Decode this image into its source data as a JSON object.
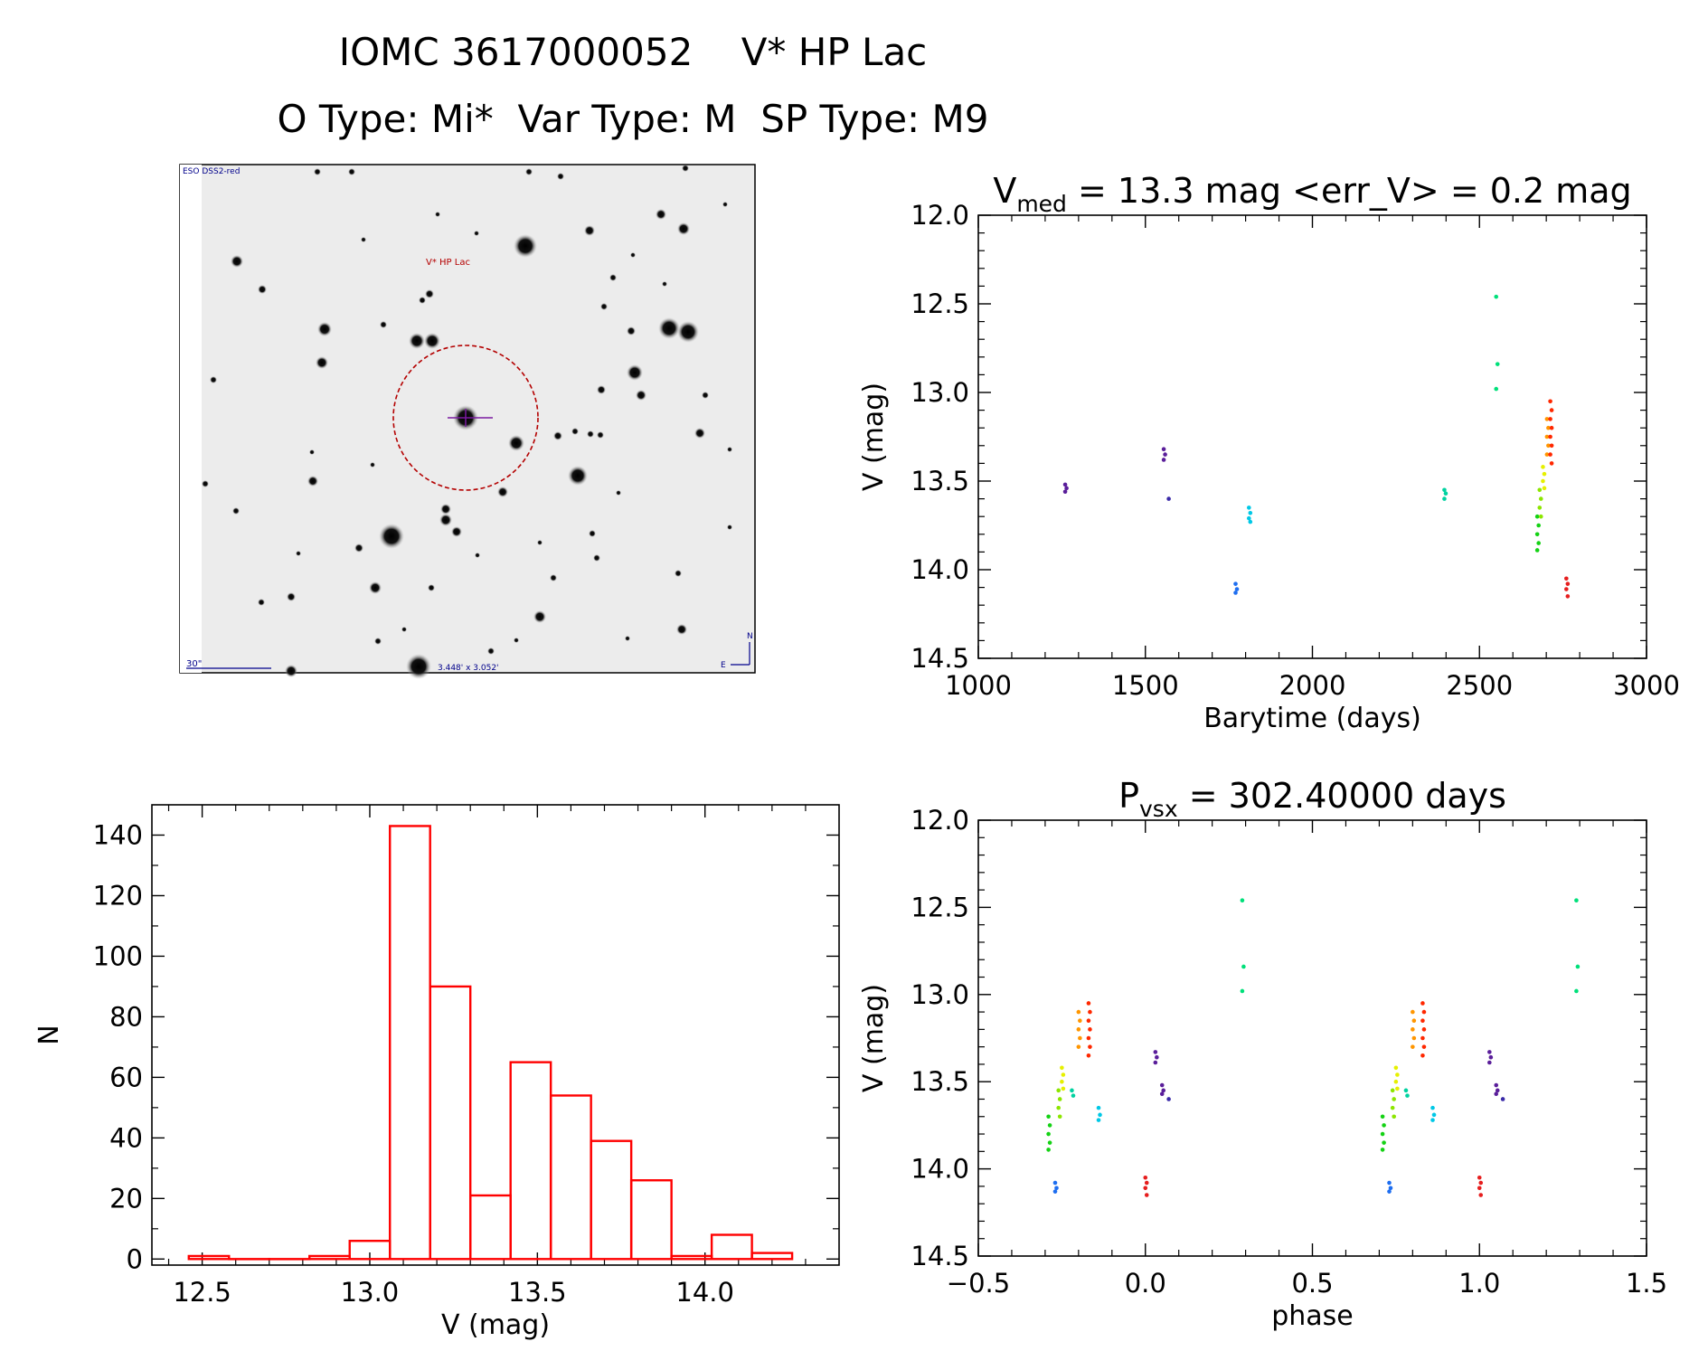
{
  "header": {
    "title": "IOMC 3617000052    V* HP Lac",
    "subtitle": "O Type: Mi*  Var Type: M  SP Type: M9"
  },
  "finder_image": {
    "survey": "ESO DSS2-red",
    "target_label": "V* HP Lac",
    "scale_label": "30\"",
    "fov_label": "3.448' x 3.052'",
    "compass_n": "N",
    "compass_e": "E"
  },
  "colors": {
    "histogram": "#ff0000",
    "circle": "#b40000",
    "annotation": "#00008b"
  },
  "chart_data": [
    {
      "id": "lightcurve",
      "type": "scatter",
      "title_main": "V",
      "title_sub": "med",
      "title_rest": " = 13.3 mag <err_V> = 0.2 mag",
      "xlabel": "Barytime (days)",
      "ylabel": "V (mag)",
      "xlim": [
        1000,
        3000
      ],
      "ylim": [
        14.5,
        12.0
      ],
      "y_inverted": true,
      "xticks": [
        "1000",
        "1500",
        "2000",
        "2500",
        "3000"
      ],
      "yticks": [
        "12.0",
        "12.5",
        "13.0",
        "13.5",
        "14.0",
        "14.5"
      ],
      "groups": [
        {
          "x": 1260,
          "y": [
            13.52,
            13.54,
            13.56
          ],
          "color": "#5a1e9a"
        },
        {
          "x": 1555,
          "y": [
            13.32,
            13.35,
            13.38
          ],
          "color": "#5a1e9a"
        },
        {
          "x": 1570,
          "y": [
            13.6
          ],
          "color": "#3a2aa8"
        },
        {
          "x": 1770,
          "y": [
            14.08,
            14.11,
            14.13
          ],
          "color": "#1e6ef0"
        },
        {
          "x": 1810,
          "y": [
            13.65,
            13.68,
            13.71,
            13.73
          ],
          "color": "#00c8e6"
        },
        {
          "x": 2395,
          "y": [
            13.55,
            13.57,
            13.6
          ],
          "color": "#00d2a0"
        },
        {
          "x": 2550,
          "y": [
            12.46,
            12.84,
            12.98
          ],
          "color": "#00e07a"
        },
        {
          "x": 2673,
          "y": [
            13.7,
            13.75,
            13.8,
            13.85,
            13.89
          ],
          "color": "#14d214"
        },
        {
          "x": 2680,
          "y": [
            13.55,
            13.6,
            13.65,
            13.7
          ],
          "color": "#8ce600"
        },
        {
          "x": 2690,
          "y": [
            13.42,
            13.46,
            13.5,
            13.54
          ],
          "color": "#e6f000"
        },
        {
          "x": 2702,
          "y": [
            13.15,
            13.2,
            13.25,
            13.3,
            13.35
          ],
          "color": "#ff9600"
        },
        {
          "x": 2712,
          "y": [
            13.05,
            13.1,
            13.15,
            13.2,
            13.25,
            13.3,
            13.35,
            13.4
          ],
          "color": "#ff2800"
        },
        {
          "x": 2760,
          "y": [
            14.05,
            14.08,
            14.11,
            14.15
          ],
          "color": "#e61e1e"
        }
      ]
    },
    {
      "id": "histogram",
      "type": "bar",
      "xlabel": "V (mag)",
      "ylabel": "N",
      "xlim": [
        12.35,
        14.4
      ],
      "ylim": [
        -2,
        150
      ],
      "xticks": [
        "12.5",
        "13.0",
        "13.5",
        "14.0"
      ],
      "yticks": [
        "0",
        "20",
        "40",
        "60",
        "80",
        "100",
        "120",
        "140"
      ],
      "bin_width": 0.12,
      "bins": [
        12.52,
        12.64,
        12.76,
        12.88,
        13.0,
        13.12,
        13.24,
        13.36,
        13.48,
        13.6,
        13.72,
        13.84,
        13.96,
        14.08,
        14.2
      ],
      "values": [
        1,
        0,
        0,
        1,
        6,
        143,
        90,
        21,
        65,
        54,
        39,
        26,
        1,
        8,
        2
      ]
    },
    {
      "id": "phased",
      "type": "scatter",
      "title_main": "P",
      "title_sub": "vsx",
      "title_rest": " = 302.40000 days",
      "xlabel": "phase",
      "ylabel": "V (mag)",
      "xlim": [
        -0.5,
        1.5
      ],
      "ylim": [
        14.5,
        12.0
      ],
      "y_inverted": true,
      "xticks": [
        "−0.5",
        "0.0",
        "0.5",
        "1.0",
        "1.5"
      ],
      "yticks": [
        "12.0",
        "12.5",
        "13.0",
        "13.5",
        "14.0",
        "14.5"
      ],
      "groups": [
        {
          "x": -0.29,
          "y": [
            13.7,
            13.75,
            13.8,
            13.85,
            13.89
          ],
          "color": "#14d214"
        },
        {
          "x": -0.27,
          "y": [
            14.08,
            14.11,
            14.13
          ],
          "color": "#1e6ef0"
        },
        {
          "x": -0.26,
          "y": [
            13.55,
            13.6,
            13.65,
            13.7
          ],
          "color": "#8ce600"
        },
        {
          "x": -0.25,
          "y": [
            13.42,
            13.46,
            13.5,
            13.54
          ],
          "color": "#e6f000"
        },
        {
          "x": -0.22,
          "y": [
            13.55,
            13.58
          ],
          "color": "#00d2a0"
        },
        {
          "x": -0.2,
          "y": [
            13.1,
            13.15,
            13.2,
            13.25,
            13.3
          ],
          "color": "#ff9600"
        },
        {
          "x": -0.17,
          "y": [
            13.05,
            13.1,
            13.15,
            13.2,
            13.25,
            13.3,
            13.35
          ],
          "color": "#ff2800"
        },
        {
          "x": -0.14,
          "y": [
            13.65,
            13.69,
            13.72
          ],
          "color": "#00c8e6"
        },
        {
          "x": 0.0,
          "y": [
            14.05,
            14.08,
            14.11,
            14.15
          ],
          "color": "#e61e1e"
        },
        {
          "x": 0.03,
          "y": [
            13.33,
            13.36,
            13.39
          ],
          "color": "#5a1e9a"
        },
        {
          "x": 0.05,
          "y": [
            13.52,
            13.55,
            13.57
          ],
          "color": "#5a1e9a"
        },
        {
          "x": 0.07,
          "y": [
            13.6
          ],
          "color": "#3a2aa8"
        },
        {
          "x": 0.29,
          "y": [
            12.46,
            12.84,
            12.98
          ],
          "color": "#00e07a"
        },
        {
          "x": 0.71,
          "y": [
            13.7,
            13.75,
            13.8,
            13.85,
            13.89
          ],
          "color": "#14d214"
        },
        {
          "x": 0.73,
          "y": [
            14.08,
            14.11,
            14.13
          ],
          "color": "#1e6ef0"
        },
        {
          "x": 0.74,
          "y": [
            13.55,
            13.6,
            13.65,
            13.7
          ],
          "color": "#8ce600"
        },
        {
          "x": 0.75,
          "y": [
            13.42,
            13.46,
            13.5,
            13.54
          ],
          "color": "#e6f000"
        },
        {
          "x": 0.78,
          "y": [
            13.55,
            13.58
          ],
          "color": "#00d2a0"
        },
        {
          "x": 0.8,
          "y": [
            13.1,
            13.15,
            13.2,
            13.25,
            13.3
          ],
          "color": "#ff9600"
        },
        {
          "x": 0.83,
          "y": [
            13.05,
            13.1,
            13.15,
            13.2,
            13.25,
            13.3,
            13.35
          ],
          "color": "#ff2800"
        },
        {
          "x": 0.86,
          "y": [
            13.65,
            13.69,
            13.72
          ],
          "color": "#00c8e6"
        },
        {
          "x": 1.0,
          "y": [
            14.05,
            14.08,
            14.11,
            14.15
          ],
          "color": "#e61e1e"
        },
        {
          "x": 1.03,
          "y": [
            13.33,
            13.36,
            13.39
          ],
          "color": "#5a1e9a"
        },
        {
          "x": 1.05,
          "y": [
            13.52,
            13.55,
            13.57
          ],
          "color": "#5a1e9a"
        },
        {
          "x": 1.07,
          "y": [
            13.6
          ],
          "color": "#3a2aa8"
        },
        {
          "x": 1.29,
          "y": [
            12.46,
            12.84,
            12.98
          ],
          "color": "#00e07a"
        }
      ]
    }
  ]
}
